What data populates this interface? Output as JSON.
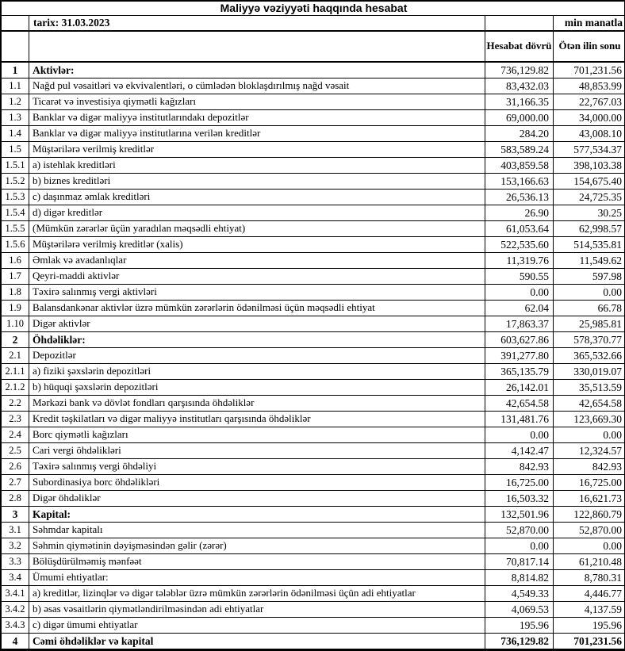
{
  "title": "Maliyyə vəziyyəti haqqında hesabat",
  "meta": {
    "date_label": "tarix: 31.03.2023",
    "unit_label": "min manatla"
  },
  "columns": {
    "current": "Hesabat dövrü",
    "previous": "Ötən ilin sonu"
  },
  "colors": {
    "background": "#ffffff",
    "text": "#000000",
    "border": "#000000"
  },
  "table": {
    "rows": [
      {
        "no": "1",
        "label": "Aktivlər:",
        "current": "736,129.82",
        "previous": "701,231.56",
        "style": "section"
      },
      {
        "no": "1.1",
        "label": "Nağd pul vəsaitləri və  ekvivalentləri, o cümlədən bloklaşdırılmış nağd vəsait",
        "current": "83,432.03",
        "previous": "48,853.99",
        "style": "normal"
      },
      {
        "no": "1.2",
        "label": "Ticarət və investisiya qiymətli kağızları",
        "current": "31,166.35",
        "previous": "22,767.03",
        "style": "normal"
      },
      {
        "no": "1.3",
        "label": "Banklar və digər maliyyə institutlarındakı depozitlər",
        "current": "69,000.00",
        "previous": "34,000.00",
        "style": "normal"
      },
      {
        "no": "1.4",
        "label": "Banklar və digər maliyyə institutlarına verilən kreditlər",
        "current": "284.20",
        "previous": "43,008.10",
        "style": "normal"
      },
      {
        "no": "1.5",
        "label": "Müştərilərə verilmiş kreditlər",
        "current": "583,589.24",
        "previous": "577,534.37",
        "style": "normal"
      },
      {
        "no": "1.5.1",
        "label": "a) istehlak kreditləri",
        "current": "403,859.58",
        "previous": "398,103.38",
        "style": "normal"
      },
      {
        "no": "1.5.2",
        "label": "b) biznes kreditləri",
        "current": "153,166.63",
        "previous": "154,675.40",
        "style": "normal"
      },
      {
        "no": "1.5.3",
        "label": "c) daşınmaz əmlak kreditləri",
        "current": "26,536.13",
        "previous": "24,725.35",
        "style": "normal"
      },
      {
        "no": "1.5.4",
        "label": "d) digər kreditlər",
        "current": "26.90",
        "previous": "30.25",
        "style": "normal"
      },
      {
        "no": "1.5.5",
        "label": "(Mümkün zərərlər üçün yaradılan məqsədli ehtiyat)",
        "current": "61,053.64",
        "previous": "62,998.57",
        "style": "normal"
      },
      {
        "no": "1.5.6",
        "label": "Müştərilərə verilmiş kreditlər (xalis)",
        "current": "522,535.60",
        "previous": "514,535.81",
        "style": "normal"
      },
      {
        "no": "1.6",
        "label": "Əmlak və avadanlıqlar",
        "current": "11,319.76",
        "previous": "11,549.62",
        "style": "normal"
      },
      {
        "no": "1.7",
        "label": "Qeyri-maddi aktivlər",
        "current": "590.55",
        "previous": "597.98",
        "style": "normal"
      },
      {
        "no": "1.8",
        "label": "Təxirə salınmış vergi aktivləri",
        "current": "0.00",
        "previous": "0.00",
        "style": "normal"
      },
      {
        "no": "1.9",
        "label": "Balansdankənar aktivlər üzrə mümkün zərərlərin ödənilməsi üçün məqsədli ehtiyat",
        "current": "62.04",
        "previous": "66.78",
        "style": "normal"
      },
      {
        "no": "1.10",
        "label": "Digər aktivlər",
        "current": "17,863.37",
        "previous": "25,985.81",
        "style": "normal"
      },
      {
        "no": "2",
        "label": "Öhdəliklər:",
        "current": "603,627.86",
        "previous": "578,370.77",
        "style": "section"
      },
      {
        "no": "2.1",
        "label": "Depozitlər",
        "current": "391,277.80",
        "previous": "365,532.66",
        "style": "normal"
      },
      {
        "no": "2.1.1",
        "label": "a) fiziki şəxslərin depozitləri",
        "current": "365,135.79",
        "previous": "330,019.07",
        "style": "normal"
      },
      {
        "no": "2.1.2",
        "label": "b) hüquqi şəxslərin depozitləri",
        "current": "26,142.01",
        "previous": "35,513.59",
        "style": "normal"
      },
      {
        "no": "2.2",
        "label": "Mərkəzi bank və dövlət fondları qarşısında öhdəliklər",
        "current": "42,654.58",
        "previous": "42,654.58",
        "style": "normal"
      },
      {
        "no": "2.3",
        "label": "Kredit təşkilatları və digər maliyyə institutları qarşısında öhdəliklər",
        "current": "131,481.76",
        "previous": "123,669.30",
        "style": "normal"
      },
      {
        "no": "2.4",
        "label": "Borc qiymətli kağızları",
        "current": "0.00",
        "previous": "0.00",
        "style": "normal"
      },
      {
        "no": "2.5",
        "label": "Cari vergi öhdəlikləri",
        "current": "4,142.47",
        "previous": "12,324.57",
        "style": "normal"
      },
      {
        "no": "2.6",
        "label": "Təxirə salınmış vergi öhdəliyi",
        "current": "842.93",
        "previous": "842.93",
        "style": "normal"
      },
      {
        "no": "2.7",
        "label": "Subordinasiya borc öhdəlikləri",
        "current": "16,725.00",
        "previous": "16,725.00",
        "style": "normal"
      },
      {
        "no": "2.8",
        "label": "Digər öhdəliklər",
        "current": "16,503.32",
        "previous": "16,621.73",
        "style": "normal"
      },
      {
        "no": "3",
        "label": "Kapital:",
        "current": "132,501.96",
        "previous": "122,860.79",
        "style": "section"
      },
      {
        "no": "3.1",
        "label": "Səhmdar kapitalı",
        "current": "52,870.00",
        "previous": "52,870.00",
        "style": "normal"
      },
      {
        "no": "3.2",
        "label": "Səhmin qiymətinin dəyişməsindən gəlir (zərər)",
        "current": "0.00",
        "previous": "0.00",
        "style": "normal"
      },
      {
        "no": "3.3",
        "label": "Bölüşdürülməmiş mənfəət",
        "current": "70,817.14",
        "previous": "61,210.48",
        "style": "normal"
      },
      {
        "no": "3.4",
        "label": "Ümumi ehtiyatlar:",
        "current": "8,814.82",
        "previous": "8,780.31",
        "style": "normal"
      },
      {
        "no": "3.4.1",
        "label": "a) kreditlər, lizinqlər və digər tələblər üzrə mümkün zərərlərin ödənilməsi üçün adi ehtiyatlar",
        "current": "4,549.33",
        "previous": "4,446.77",
        "style": "normal"
      },
      {
        "no": "3.4.2",
        "label": "b) əsas vəsaitlərin qiymətləndirilməsindən adi ehtiyatlar",
        "current": "4,069.53",
        "previous": "4,137.59",
        "style": "normal"
      },
      {
        "no": "3.4.3",
        "label": "c) digər ümumi ehtiyatlar",
        "current": "195.96",
        "previous": "195.96",
        "style": "normal"
      },
      {
        "no": "4",
        "label": "Cəmi öhdəliklər və kapital",
        "current": "736,129.82",
        "previous": "701,231.56",
        "style": "total"
      }
    ]
  }
}
